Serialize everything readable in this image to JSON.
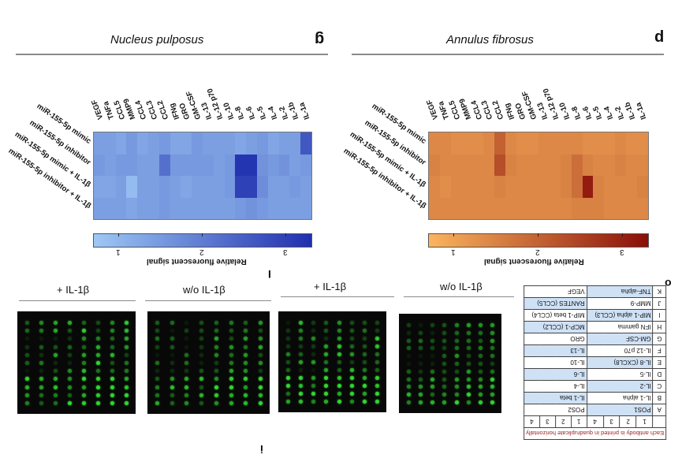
{
  "panels": {
    "left_title": "Nucleus pulposus",
    "right_title": "Annulus fibrosus",
    "left_letter": "g",
    "right_letter": "p",
    "mid_letter": "I",
    "bottom_letter": "i",
    "table_letter": "o"
  },
  "heatmap": {
    "columns": [
      "VEGF",
      "TNFa",
      "CCL5",
      "MMP9",
      "CCL4",
      "CCL3",
      "CCL2",
      "IFNg",
      "GRO",
      "GM-CSF",
      "IL-13",
      "IL-12 p70",
      "IL-10",
      "IL-8",
      "IL-6",
      "IL-5",
      "IL-4",
      "IL-2",
      "IL-1b",
      "IL-1a"
    ],
    "rows": [
      "miR-155-5p mimic",
      "miR-155-5p inhibitor",
      "miR-155-5p mimic + IL-1β",
      "miR-155-5p inhibitor + IL-1β"
    ],
    "np_values": [
      [
        1.4,
        1.4,
        1.3,
        1.5,
        1.3,
        1.4,
        1.5,
        1.3,
        1.3,
        1.5,
        1.4,
        1.4,
        1.4,
        1.3,
        1.4,
        1.5,
        1.3,
        1.4,
        1.4,
        2.6
      ],
      [
        1.5,
        1.4,
        1.5,
        1.5,
        1.4,
        1.4,
        2.2,
        1.5,
        1.5,
        1.5,
        1.5,
        1.4,
        1.5,
        3.2,
        3.2,
        1.6,
        1.5,
        1.6,
        1.4,
        1.5
      ],
      [
        1.3,
        1.3,
        1.4,
        0.9,
        1.4,
        1.4,
        1.5,
        1.4,
        1.3,
        1.4,
        1.4,
        1.4,
        1.5,
        3.0,
        3.0,
        1.7,
        1.4,
        1.4,
        1.5,
        1.4
      ],
      [
        1.4,
        1.4,
        1.4,
        1.3,
        1.4,
        1.4,
        1.5,
        1.4,
        1.4,
        1.4,
        1.4,
        1.4,
        1.4,
        1.5,
        1.6,
        1.5,
        1.4,
        1.4,
        1.4,
        1.4
      ]
    ],
    "af_values": [
      [
        1.4,
        1.4,
        1.3,
        1.3,
        1.3,
        1.4,
        2.0,
        1.4,
        1.3,
        1.3,
        1.4,
        1.4,
        1.4,
        1.4,
        1.3,
        1.3,
        1.3,
        1.4,
        1.3,
        1.3
      ],
      [
        1.5,
        1.4,
        1.4,
        1.4,
        1.4,
        1.4,
        2.3,
        1.5,
        1.4,
        1.4,
        1.4,
        1.4,
        1.5,
        1.8,
        1.5,
        1.4,
        1.4,
        1.5,
        1.4,
        1.4
      ],
      [
        1.4,
        1.3,
        1.4,
        1.4,
        1.4,
        1.4,
        1.5,
        1.4,
        1.4,
        1.4,
        1.4,
        1.4,
        1.5,
        1.8,
        3.1,
        1.5,
        1.4,
        1.4,
        1.4,
        1.5
      ],
      [
        1.4,
        1.4,
        1.4,
        1.4,
        1.4,
        1.4,
        1.4,
        1.4,
        1.4,
        1.4,
        1.4,
        1.4,
        1.4,
        1.5,
        1.5,
        1.5,
        1.4,
        1.4,
        1.4,
        1.4
      ]
    ],
    "colorbar_ticks": [
      "1",
      "2",
      "3"
    ],
    "colorbar_title": "Relative fluorescent signal",
    "np_colors": [
      "#9ec8f5",
      "#1f2fae"
    ],
    "af_colors": [
      "#fbb55e",
      "#8a0e08"
    ]
  },
  "blots": {
    "labels": [
      "+ IL-1β",
      "w/o IL-1β",
      "+ IL-1β",
      "w/o IL-1β"
    ]
  },
  "array_map": {
    "header": "Each antibody is printed in quadruplicate horizontally",
    "col_numbers": [
      "1",
      "2",
      "3",
      "4",
      "1",
      "2",
      "3",
      "4"
    ],
    "rows": [
      {
        "letter": "A",
        "left": "POS1",
        "right": "POS2"
      },
      {
        "letter": "B",
        "left": "IL-1 alpha",
        "right": "IL-1 beta"
      },
      {
        "letter": "C",
        "left": "IL-2",
        "right": "IL-4"
      },
      {
        "letter": "D",
        "left": "IL-5",
        "right": "IL-6"
      },
      {
        "letter": "E",
        "left": "IL-8 (CXCL8)",
        "right": "IL-10"
      },
      {
        "letter": "F",
        "left": "IL-12 p70",
        "right": "IL-13"
      },
      {
        "letter": "G",
        "left": "GM-CSF",
        "right": "GRO"
      },
      {
        "letter": "H",
        "left": "IFN gamma",
        "right": "MCP-1 (CCL2)"
      },
      {
        "letter": "I",
        "left": "MIP-1 alpha (CCL3)",
        "right": "MIP-1 beta (CCL4)"
      },
      {
        "letter": "J",
        "left": "MMP-9",
        "right": "RANTES (CCL5)"
      },
      {
        "letter": "K",
        "left": "TNF-alpha",
        "right": "VEGF"
      }
    ]
  }
}
